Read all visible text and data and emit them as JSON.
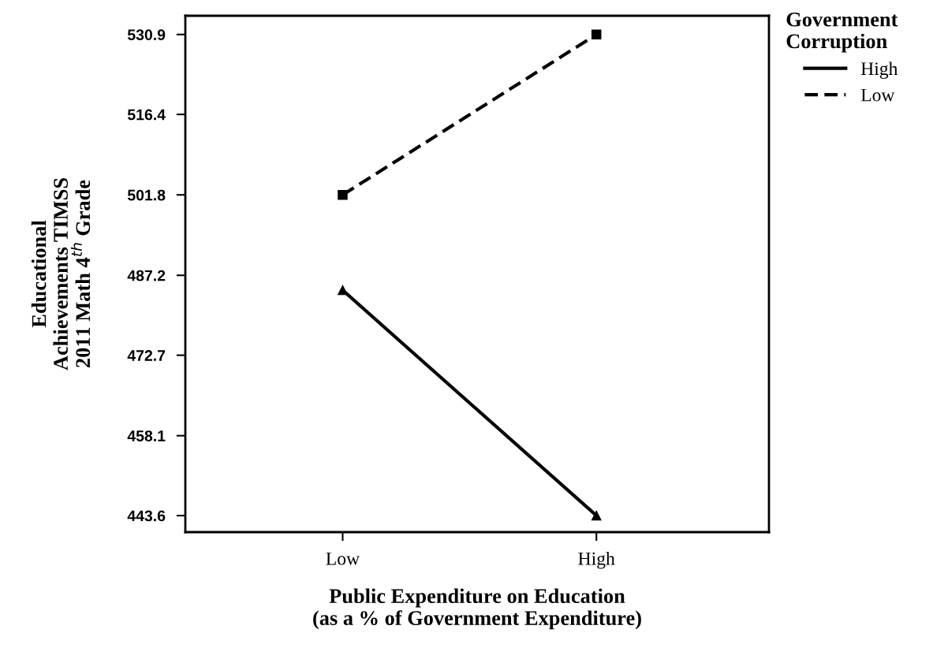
{
  "chart_data": {
    "type": "line",
    "xlabel": "Public Expenditure on Education\n(as a % of Government Expenditure)",
    "ylabel": "Educational\nAchievements TIMSS\n2011 Math 4$^{th}$ Grade",
    "legend_title": "Government\nCorruption",
    "categories": [
      "Low",
      "High"
    ],
    "series": [
      {
        "name": "High",
        "color": "#000000",
        "values": [
          484.5,
          443.6
        ],
        "marker": "triangle",
        "line_style": "solid"
      },
      {
        "name": "Low",
        "color": "#000000",
        "values": [
          501.8,
          530.9
        ],
        "marker": "square",
        "line_style": "dashed"
      }
    ],
    "ylim": [
      440.6,
      534.3
    ],
    "yticks": [
      443.6,
      458.1,
      472.7,
      487.2,
      501.8,
      516.4,
      530.9
    ],
    "grid": false,
    "legend": "top right"
  }
}
